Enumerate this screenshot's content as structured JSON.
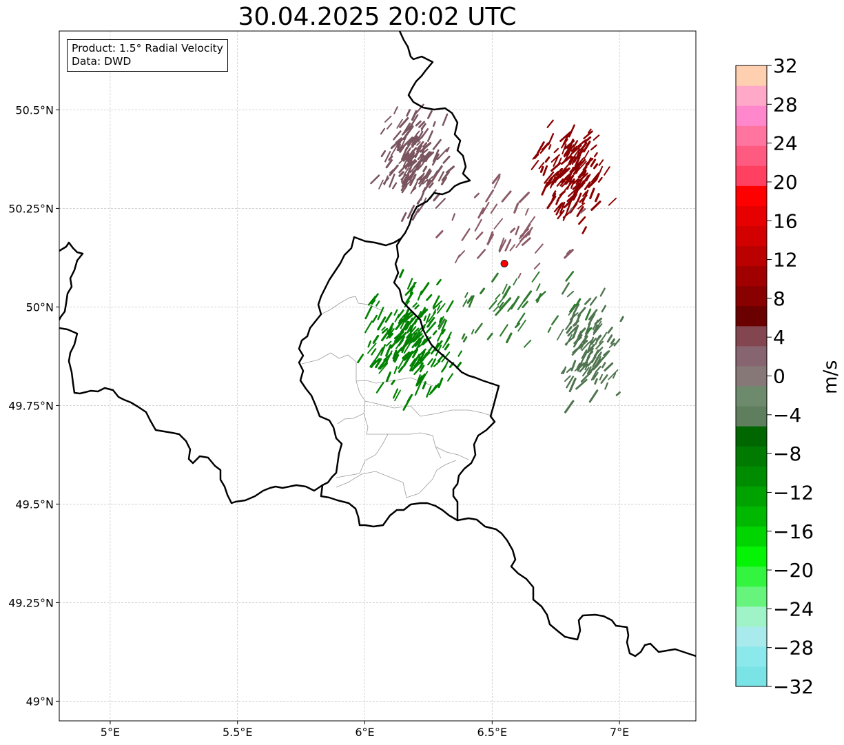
{
  "title": "30.04.2025 20:02 UTC",
  "info": {
    "product": "Product: 1.5° Radial Velocity",
    "source": "Data: DWD"
  },
  "axes": {
    "lon_ticks": [
      {
        "value": 5.0,
        "label": "5°E"
      },
      {
        "value": 5.5,
        "label": "5.5°E"
      },
      {
        "value": 6.0,
        "label": "6°E"
      },
      {
        "value": 6.5,
        "label": "6.5°E"
      },
      {
        "value": 7.0,
        "label": "7°E"
      }
    ],
    "lat_ticks": [
      {
        "value": 50.5,
        "label": "50.5°N"
      },
      {
        "value": 50.25,
        "label": "50.25°N"
      },
      {
        "value": 50.0,
        "label": "50°N"
      },
      {
        "value": 49.75,
        "label": "49.75°N"
      },
      {
        "value": 49.5,
        "label": "49.5°N"
      },
      {
        "value": 49.25,
        "label": "49.25°N"
      },
      {
        "value": 49.0,
        "label": "49°N"
      }
    ],
    "lon_range": [
      4.8,
      7.3
    ],
    "lat_range": [
      48.95,
      50.7
    ]
  },
  "radar_site": {
    "lon": 6.548,
    "lat": 50.11,
    "color": "#ff0000"
  },
  "colorbar": {
    "label": "m/s",
    "min": -32,
    "max": 32,
    "tick_labels": [
      {
        "value": 32,
        "label": "32"
      },
      {
        "value": 28,
        "label": "28"
      },
      {
        "value": 24,
        "label": "24"
      },
      {
        "value": 20,
        "label": "20"
      },
      {
        "value": 16,
        "label": "16"
      },
      {
        "value": 12,
        "label": "12"
      },
      {
        "value": 8,
        "label": "8"
      },
      {
        "value": 4,
        "label": "4"
      },
      {
        "value": 0,
        "label": "0"
      },
      {
        "value": -4,
        "label": "−4"
      },
      {
        "value": -8,
        "label": "−8"
      },
      {
        "value": -12,
        "label": "−12"
      },
      {
        "value": -16,
        "label": "−16"
      },
      {
        "value": -20,
        "label": "−20"
      },
      {
        "value": -24,
        "label": "−24"
      },
      {
        "value": -28,
        "label": "−28"
      },
      {
        "value": -32,
        "label": "−32"
      }
    ],
    "colors": [
      "#7ae3e6",
      "#8be8eb",
      "#a9eaec",
      "#9ff3c6",
      "#66f47c",
      "#33f53f",
      "#05f405",
      "#00d500",
      "#00b800",
      "#00a200",
      "#008c00",
      "#007a00",
      "#006600",
      "#5e7e5e",
      "#6d8a6d",
      "#877878",
      "#876570",
      "#834650",
      "#6b0000",
      "#880000",
      "#a00000",
      "#bb0000",
      "#d30000",
      "#e60000",
      "#ff0000",
      "#ff4060",
      "#ff5a80",
      "#ff75a0",
      "#ff88cc",
      "#ffa8c8",
      "#ffd0b0"
    ]
  },
  "map": {
    "borders_color": "#000000",
    "admin_color": "#9a9a9a",
    "grid_color": "#b8b8b8"
  },
  "echo_regions": [
    {
      "name": "north-west-dark-pink",
      "color": "#7a5560",
      "lon": 6.2,
      "lat": 50.37,
      "rlon": 0.13,
      "rlat": 0.13,
      "count": 160
    },
    {
      "name": "north-east-dark-red",
      "color": "#8b0000",
      "lon": 6.82,
      "lat": 50.33,
      "rlon": 0.14,
      "rlat": 0.12,
      "count": 170
    },
    {
      "name": "central-green",
      "color": "#008200",
      "lon": 6.18,
      "lat": 49.92,
      "rlon": 0.18,
      "rlat": 0.15,
      "count": 200
    },
    {
      "name": "east-grey-green",
      "color": "#4f744f",
      "lon": 6.88,
      "lat": 49.9,
      "rlon": 0.12,
      "rlat": 0.14,
      "count": 110
    },
    {
      "name": "scatter-pink",
      "color": "#8a5a66",
      "lon": 6.55,
      "lat": 50.2,
      "rlon": 0.3,
      "rlat": 0.12,
      "count": 45
    },
    {
      "name": "scatter-green",
      "color": "#2f7a2f",
      "lon": 6.6,
      "lat": 50.0,
      "rlon": 0.3,
      "rlat": 0.1,
      "count": 45
    }
  ]
}
